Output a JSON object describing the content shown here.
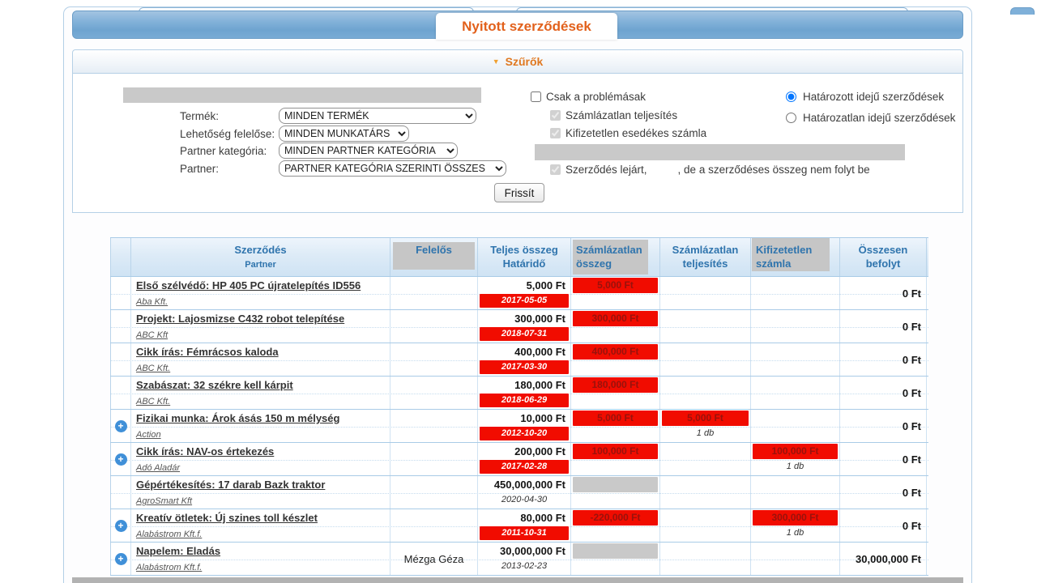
{
  "page": {
    "tab_title": "Nyitott szerződések"
  },
  "colors": {
    "accent_orange": "#e2611c",
    "filter_orange": "#e07820",
    "alert_red": "#f10c00",
    "alert_red_text": "#99120c",
    "header_blue": "#2f74ad",
    "bar_blue": "#7fb0d9",
    "redaction_gray": "#c9c9c9"
  },
  "filters": {
    "header": "Szűrők",
    "fields": [
      {
        "label": "Termék:",
        "value": "MINDEN TERMÉK"
      },
      {
        "label": "Lehetőség felelőse:",
        "value": "MINDEN MUNKATÁRS"
      },
      {
        "label": "Partner kategória:",
        "value": "MINDEN PARTNER KATEGÓRIA"
      },
      {
        "label": "Partner:",
        "value": "PARTNER KATEGÓRIA SZERINTI ÖSSZES"
      }
    ],
    "problem_label": "Csak a problémásak",
    "sub1": "Számlázatlan teljesítés",
    "sub2": "Kifizetetlen esedékes számla",
    "expired_prefix": "Szerződés lejárt,",
    "expired_suffix": ", de a szerződéses összeg nem folyt be",
    "radio1": "Határozott idejű szerződések",
    "radio2": "Határozatlan idejű szerződések",
    "refresh_label": "Frissít"
  },
  "table": {
    "headers": [
      {
        "line1": "",
        "line2": ""
      },
      {
        "line1": "Szerződés",
        "line2": "Partner"
      },
      {
        "line1": "Felelős",
        "line2": ""
      },
      {
        "line1": "Teljes összeg",
        "line2": "Határidő"
      },
      {
        "line1": "Számlázatlan",
        "line2": "összeg"
      },
      {
        "line1": "Számlázatlan",
        "line2": "teljesítés"
      },
      {
        "line1": "Kifizetetlen",
        "line2": "számla"
      },
      {
        "line1": "Összesen",
        "line2": "befolyt"
      }
    ],
    "rows": [
      {
        "expand": false,
        "contract": "Első szélvédő: HP 405 PC újratelepítés ID556",
        "partner": "Aba Kft.",
        "responsible": "",
        "total": "5,000 Ft",
        "deadline": "2017-05-05",
        "overdue": true,
        "unbilled": {
          "type": "red",
          "text": "5,000 Ft"
        },
        "fulfillment": null,
        "unpaid": null,
        "collected": "0 Ft"
      },
      {
        "expand": false,
        "contract": "Projekt: Lajosmizse C432 robot telepítése",
        "partner": "ABC Kft",
        "responsible": "",
        "total": "300,000 Ft",
        "deadline": "2018-07-31",
        "overdue": true,
        "unbilled": {
          "type": "red",
          "text": "300,000 Ft"
        },
        "fulfillment": null,
        "unpaid": null,
        "collected": "0 Ft"
      },
      {
        "expand": false,
        "contract": "Cikk írás: Fémrácsos kaloda",
        "partner": "ABC Kft.",
        "responsible": "",
        "total": "400,000 Ft",
        "deadline": "2017-03-30",
        "overdue": true,
        "unbilled": {
          "type": "red",
          "text": "400,000 Ft"
        },
        "fulfillment": null,
        "unpaid": null,
        "collected": "0 Ft"
      },
      {
        "expand": false,
        "contract": "Szabászat: 32 székre kell kárpit",
        "partner": "ABC Kft.",
        "responsible": "",
        "total": "180,000 Ft",
        "deadline": "2018-06-29",
        "overdue": true,
        "unbilled": {
          "type": "red",
          "text": "180,000 Ft"
        },
        "fulfillment": null,
        "unpaid": null,
        "collected": "0 Ft"
      },
      {
        "expand": true,
        "contract": "Fizikai munka: Árok ásás 150 m mélység",
        "partner": "Action",
        "responsible": "",
        "total": "10,000 Ft",
        "deadline": "2012-10-20",
        "overdue": true,
        "unbilled": {
          "type": "red",
          "text": "5,000 Ft"
        },
        "fulfillment": {
          "text": "5,000 Ft",
          "count": "1 db"
        },
        "unpaid": null,
        "collected": "0 Ft"
      },
      {
        "expand": true,
        "contract": "Cikk írás: NAV-os értekezés",
        "partner": "Adó Aladár",
        "responsible": "",
        "total": "200,000 Ft",
        "deadline": "2017-02-28",
        "overdue": true,
        "unbilled": {
          "type": "red",
          "text": "100,000 Ft"
        },
        "fulfillment": null,
        "unpaid": {
          "text": "100,000 Ft",
          "count": "1 db"
        },
        "collected": "0 Ft"
      },
      {
        "expand": false,
        "contract": "Gépértékesítés: 17 darab Bazk traktor",
        "partner": "AgroSmart Kft",
        "responsible": "",
        "total": "450,000,000 Ft",
        "deadline": "2020-04-30",
        "overdue": false,
        "unbilled": {
          "type": "gray",
          "text": ""
        },
        "fulfillment": null,
        "unpaid": null,
        "collected": "0 Ft"
      },
      {
        "expand": true,
        "contract": "Kreatív ötletek: Új szines toll készlet",
        "partner": "Alabástrom Kft.f.",
        "responsible": "",
        "total": "80,000 Ft",
        "deadline": "2011-10-31",
        "overdue": true,
        "unbilled": {
          "type": "red",
          "text": "-220,000 Ft"
        },
        "fulfillment": null,
        "unpaid": {
          "text": "300,000 Ft",
          "count": "1 db"
        },
        "collected": "0 Ft"
      },
      {
        "expand": true,
        "contract": "Napelem: Eladás",
        "partner": "Alabástrom Kft.f.",
        "responsible": "Mézga Géza",
        "total": "30,000,000 Ft",
        "deadline": "2013-02-23",
        "overdue": false,
        "unbilled": {
          "type": "gray",
          "text": ""
        },
        "fulfillment": null,
        "unpaid": null,
        "collected": "30,000,000 Ft"
      }
    ]
  }
}
